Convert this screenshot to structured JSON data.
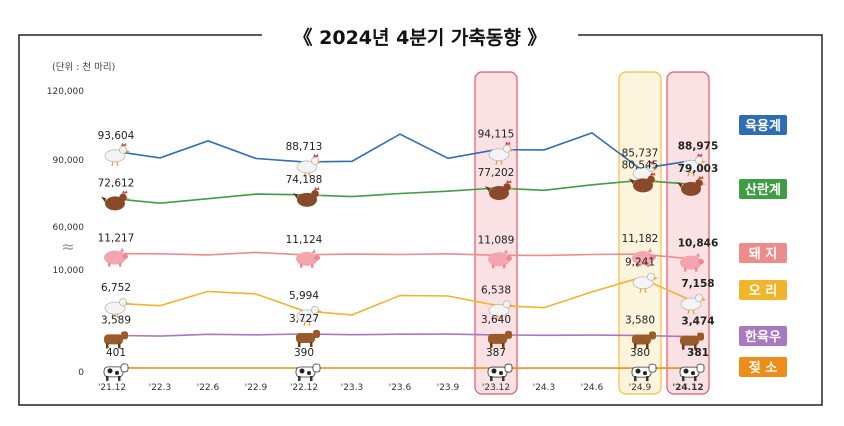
{
  "chart_data": {
    "type": "line",
    "title": "《 2024년 4분기 가축동향 》",
    "unit_label": "(단위 : 천 마리)",
    "y_ticks": [
      "120,000",
      "90,000",
      "60,000",
      "10,000",
      "0"
    ],
    "x_ticks": [
      "'21.12",
      "'22.3",
      "'22.6",
      "'22.9",
      "'22.12",
      "'23.3",
      "'23.6",
      "'23.9",
      "'23.12",
      "'24.3",
      "'24.6",
      "'24.9",
      "'24.12"
    ],
    "highlight_columns": [
      {
        "index": 8,
        "color": "#e05a6a"
      },
      {
        "index": 11,
        "color": "#f0c040"
      },
      {
        "index": 12,
        "color": "#e05a6a"
      }
    ],
    "series": [
      {
        "name": "육용계",
        "color": "#2e6db4",
        "icon": "chicken-icon",
        "values": [
          93604,
          90500,
          98000,
          90200,
          88713,
          89000,
          101000,
          90300,
          94115,
          94000,
          101500,
          85737,
          88975
        ],
        "labels": {
          "0": "93,604",
          "4": "88,713",
          "8": "94,115",
          "11": "85,737",
          "12": "88,975"
        }
      },
      {
        "name": "산란계",
        "color": "#3f9e45",
        "icon": "hen-icon",
        "values": [
          72612,
          70500,
          72500,
          74500,
          74188,
          73400,
          74800,
          75800,
          77202,
          76200,
          78600,
          80545,
          79003
        ],
        "labels": {
          "0": "72,612",
          "4": "74,188",
          "8": "77,202",
          "11": "80,545",
          "12": "79,003"
        }
      },
      {
        "name": "돼지",
        "color": "#ee8c8c",
        "icon": "pig-icon",
        "values": [
          11217,
          11200,
          11120,
          11300,
          11124,
          11180,
          11150,
          11200,
          11089,
          11080,
          11150,
          11182,
          10846
        ],
        "labels": {
          "0": "11,217",
          "4": "11,124",
          "8": "11,089",
          "11": "11,182",
          "12": "10,846"
        }
      },
      {
        "name": "오리",
        "color": "#f2b42b",
        "icon": "duck-icon",
        "values": [
          6752,
          6500,
          7900,
          7650,
          5994,
          5600,
          7500,
          7450,
          6538,
          6300,
          7850,
          9241,
          7158
        ],
        "labels": {
          "0": "6,752",
          "4": "5,994",
          "8": "6,538",
          "11": "9,241",
          "12": "7,158"
        }
      },
      {
        "name": "한육우",
        "color": "#a878c0",
        "icon": "cow-icon",
        "values": [
          3589,
          3520,
          3700,
          3650,
          3727,
          3660,
          3710,
          3720,
          3640,
          3600,
          3620,
          3580,
          3474
        ],
        "labels": {
          "0": "3,589",
          "4": "3,727",
          "8": "3,640",
          "11": "3,580",
          "12": "3,474"
        }
      },
      {
        "name": "젖소",
        "color": "#f08c1a",
        "icon": "dairy-cow-icon",
        "values": [
          401,
          396,
          392,
          393,
          390,
          388,
          389,
          388,
          387,
          385,
          383,
          380,
          381
        ],
        "labels": {
          "0": "401",
          "4": "390",
          "8": "387",
          "11": "380",
          "12": "381"
        }
      }
    ],
    "legend_labels": [
      "육용계",
      "산란계",
      "돼 지",
      "오 리",
      "한육우",
      "젖 소"
    ]
  }
}
